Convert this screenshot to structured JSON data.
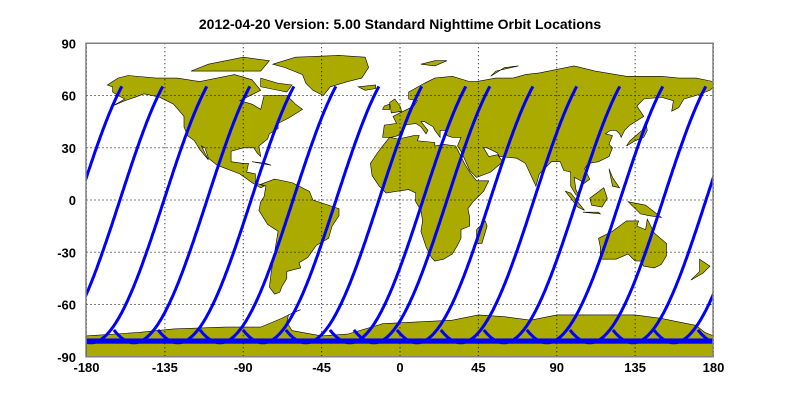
{
  "title": "2012-04-20    Version: 5.00  Standard    Nighttime Orbit Locations",
  "colors": {
    "land": "#aaaa00",
    "coast": "#000000",
    "track": "#0000ff",
    "frame": "#808080"
  },
  "chart_data": {
    "type": "map",
    "projection": "equirectangular",
    "xlim": [
      -180,
      180
    ],
    "ylim": [
      -90,
      90
    ],
    "x_ticks": [
      "-180",
      "-135",
      "-90",
      "-45",
      "0",
      "45",
      "90",
      "135",
      "180"
    ],
    "y_ticks": [
      "90",
      "60",
      "30",
      "0",
      "-30",
      "-60",
      "-90"
    ],
    "grid": "dotted",
    "track_equator_crossing_lon": [
      -160.8,
      -135.5,
      -110.8,
      -85.5,
      -61.4,
      -36.7,
      -12.1,
      13.2,
      27.0,
      51.7,
      76.9,
      101.6,
      126.3,
      151.0,
      175.7
    ],
    "track_lat_range": [
      -82,
      66
    ]
  }
}
